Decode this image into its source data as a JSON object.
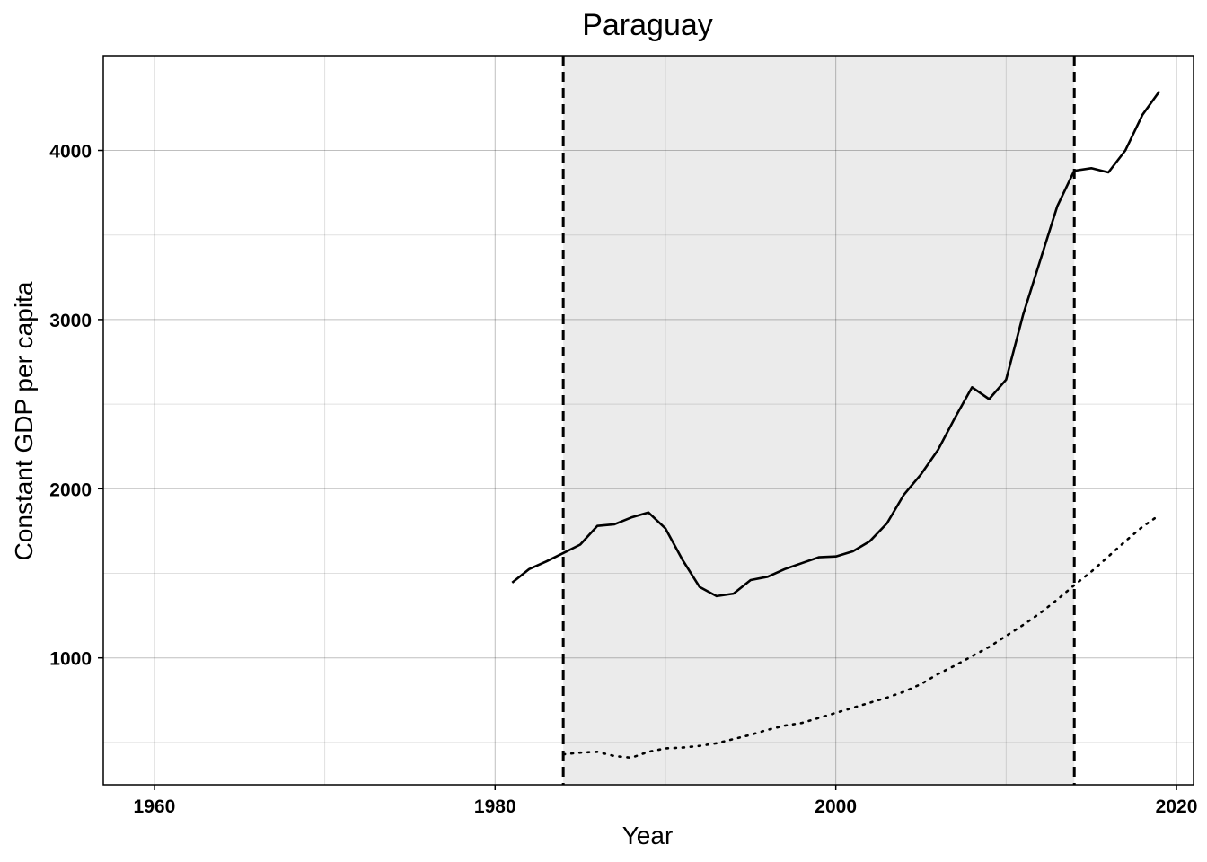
{
  "chart_data": {
    "type": "line",
    "title": "Paraguay",
    "xlabel": "Year",
    "ylabel": "Constant GDP per capita",
    "xlim": [
      1957,
      2021
    ],
    "ylim": [
      250,
      4560
    ],
    "x_ticks": [
      1960,
      1980,
      2000,
      2020
    ],
    "y_ticks": [
      1000,
      2000,
      3000,
      4000
    ],
    "x_tick_labels": [
      "1960",
      "1980",
      "2000",
      "2020"
    ],
    "y_tick_labels": [
      "1000",
      "2000",
      "3000",
      "4000"
    ],
    "x_minor_ticks": [
      1970,
      1990,
      2010
    ],
    "y_minor_ticks": [
      500,
      1500,
      2500,
      3500
    ],
    "grid": true,
    "legend": "none",
    "shaded_region": {
      "x_start": 1984,
      "x_end": 2014,
      "color": "#ebebeb"
    },
    "vlines": [
      {
        "x": 1984,
        "style": "dashed"
      },
      {
        "x": 2014,
        "style": "dashed"
      }
    ],
    "series": [
      {
        "style": "solid",
        "color": "#000000",
        "x": [
          1981,
          1982,
          1983,
          1984,
          1985,
          1986,
          1987,
          1988,
          1989,
          1990,
          1991,
          1992,
          1993,
          1994,
          1995,
          1996,
          1997,
          1998,
          1999,
          2000,
          2001,
          2002,
          2003,
          2004,
          2005,
          2006,
          2007,
          2008,
          2009,
          2010,
          2011,
          2012,
          2013,
          2014,
          2015,
          2016,
          2017,
          2018,
          2019
        ],
        "y": [
          1445,
          1525,
          1570,
          1620,
          1670,
          1780,
          1790,
          1830,
          1860,
          1765,
          1580,
          1420,
          1365,
          1380,
          1460,
          1480,
          1525,
          1560,
          1595,
          1600,
          1630,
          1690,
          1795,
          1965,
          2085,
          2230,
          2420,
          2600,
          2530,
          2645,
          3030,
          3350,
          3670,
          3880,
          3895,
          3870,
          4000,
          4210,
          4350
        ]
      },
      {
        "style": "dotted",
        "color": "#000000",
        "x": [
          1984,
          1985,
          1986,
          1987,
          1988,
          1989,
          1990,
          1991,
          1992,
          1993,
          1994,
          1995,
          1996,
          1997,
          1998,
          1999,
          2000,
          2001,
          2002,
          2003,
          2004,
          2005,
          2006,
          2007,
          2008,
          2009,
          2010,
          2011,
          2012,
          2013,
          2014,
          2015,
          2016,
          2017,
          2018,
          2019
        ],
        "y": [
          430,
          440,
          445,
          420,
          410,
          445,
          465,
          470,
          480,
          495,
          520,
          545,
          575,
          600,
          615,
          645,
          675,
          705,
          735,
          765,
          800,
          845,
          905,
          955,
          1010,
          1065,
          1130,
          1195,
          1265,
          1345,
          1430,
          1510,
          1600,
          1690,
          1775,
          1845
        ]
      }
    ]
  }
}
